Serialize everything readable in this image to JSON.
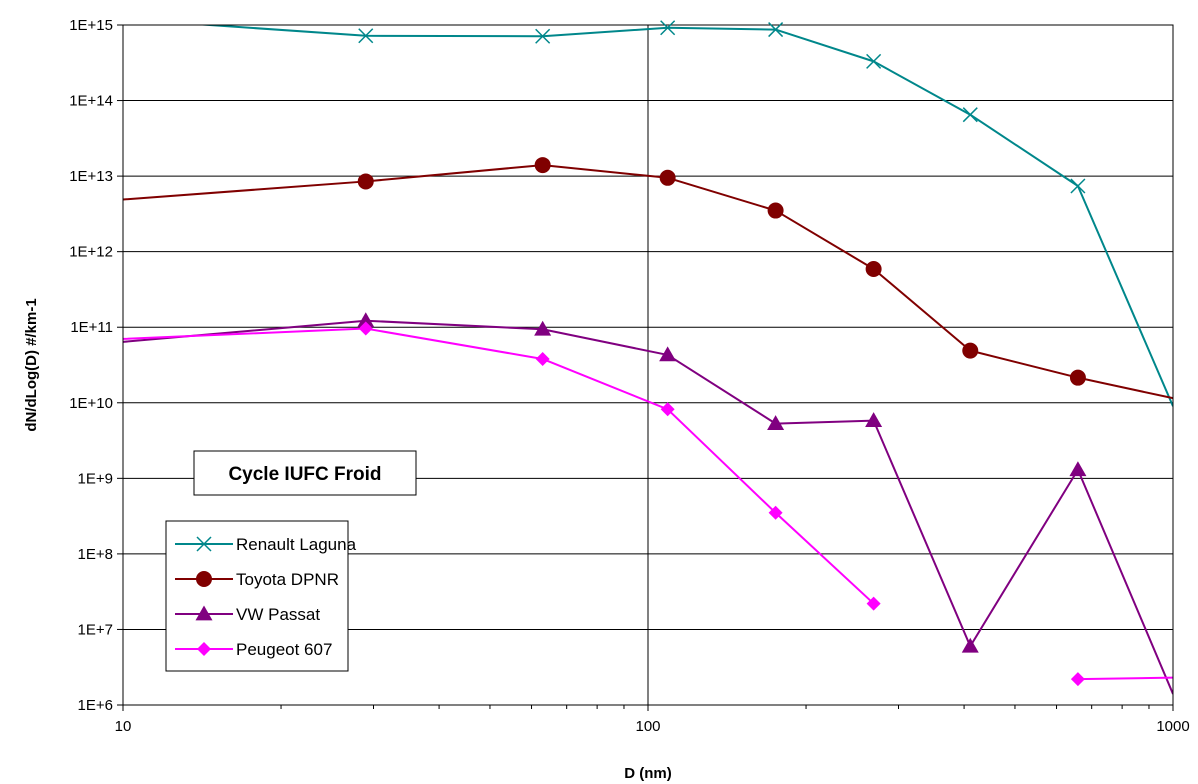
{
  "chart_data": {
    "type": "line",
    "x_scale": "log",
    "y_scale": "log",
    "xlabel": "D (nm)",
    "ylabel": "dN/dLog(D) #/km-1",
    "xlim": [
      10,
      1000
    ],
    "ylim": [
      1000000.0,
      1000000000000000.0
    ],
    "x_ticks": [
      {
        "value": 10,
        "label": "10"
      },
      {
        "value": 100,
        "label": "100"
      },
      {
        "value": 1000,
        "label": "1000"
      }
    ],
    "y_ticks": [
      {
        "value": 1000000.0,
        "label": "1E+6"
      },
      {
        "value": 10000000.0,
        "label": "1E+7"
      },
      {
        "value": 100000000.0,
        "label": "1E+8"
      },
      {
        "value": 1000000000.0,
        "label": "1E+9"
      },
      {
        "value": 10000000000.0,
        "label": "1E+10"
      },
      {
        "value": 100000000000.0,
        "label": "1E+11"
      },
      {
        "value": 1000000000000.0,
        "label": "1E+12"
      },
      {
        "value": 10000000000000.0,
        "label": "1E+13"
      },
      {
        "value": 100000000000000.0,
        "label": "1E+14"
      },
      {
        "value": 1000000000000000.0,
        "label": "1E+15"
      }
    ],
    "grid": {
      "horizontal": true,
      "vertical_at": [
        100
      ]
    },
    "legend_placement": "bottom-left",
    "annotation": "Cycle IUFC Froid",
    "series": [
      {
        "name": "Renault Laguna",
        "color": "#00878B",
        "marker": "x",
        "points": [
          {
            "x": 10,
            "y": 1200000000000000.0,
            "marker": false
          },
          {
            "x": 29,
            "y": 720000000000000.0
          },
          {
            "x": 63,
            "y": 710000000000000.0
          },
          {
            "x": 109,
            "y": 920000000000000.0
          },
          {
            "x": 175,
            "y": 870000000000000.0
          },
          {
            "x": 269,
            "y": 330000000000000.0
          },
          {
            "x": 411,
            "y": 65000000000000.0
          },
          {
            "x": 659,
            "y": 7400000000000.0
          },
          {
            "x": 1000,
            "y": 9000000000.0,
            "marker": false
          }
        ]
      },
      {
        "name": "Toyota DPNR",
        "color": "#800000",
        "marker": "circle",
        "points": [
          {
            "x": 10,
            "y": 4900000000000.0,
            "marker": false
          },
          {
            "x": 29,
            "y": 8500000000000.0
          },
          {
            "x": 63,
            "y": 14000000000000.0
          },
          {
            "x": 109,
            "y": 9500000000000.0
          },
          {
            "x": 175,
            "y": 3500000000000.0
          },
          {
            "x": 269,
            "y": 590000000000.0
          },
          {
            "x": 411,
            "y": 49000000000.0
          },
          {
            "x": 659,
            "y": 21500000000.0
          },
          {
            "x": 1000,
            "y": 11500000000.0,
            "marker": false
          }
        ]
      },
      {
        "name": "VW Passat",
        "color": "#800080",
        "marker": "triangle",
        "points": [
          {
            "x": 10,
            "y": 64000000000.0,
            "marker": false
          },
          {
            "x": 29,
            "y": 122000000000.0
          },
          {
            "x": 63,
            "y": 94000000000.0
          },
          {
            "x": 109,
            "y": 43000000000.0
          },
          {
            "x": 175,
            "y": 5300000000.0
          },
          {
            "x": 269,
            "y": 5800000000.0
          },
          {
            "x": 411,
            "y": 6000000.0
          },
          {
            "x": 659,
            "y": 1300000000.0
          },
          {
            "x": 1000,
            "y": 1400000.0,
            "marker": false
          }
        ]
      },
      {
        "name": "Peugeot 607",
        "color": "#FF00FF",
        "marker": "diamond",
        "points": [
          {
            "x": 10,
            "y": 70000000000.0,
            "marker": false
          },
          {
            "x": 29,
            "y": 96000000000.0
          },
          {
            "x": 63,
            "y": 38000000000.0
          },
          {
            "x": 109,
            "y": 8200000000.0
          },
          {
            "x": 175,
            "y": 350000000.0
          },
          {
            "x": 269,
            "y": 22000000.0
          },
          {
            "x": 659,
            "y": 2200000.0,
            "break_before": true
          },
          {
            "x": 1000,
            "y": 2300000.0,
            "marker": false
          }
        ]
      }
    ]
  }
}
